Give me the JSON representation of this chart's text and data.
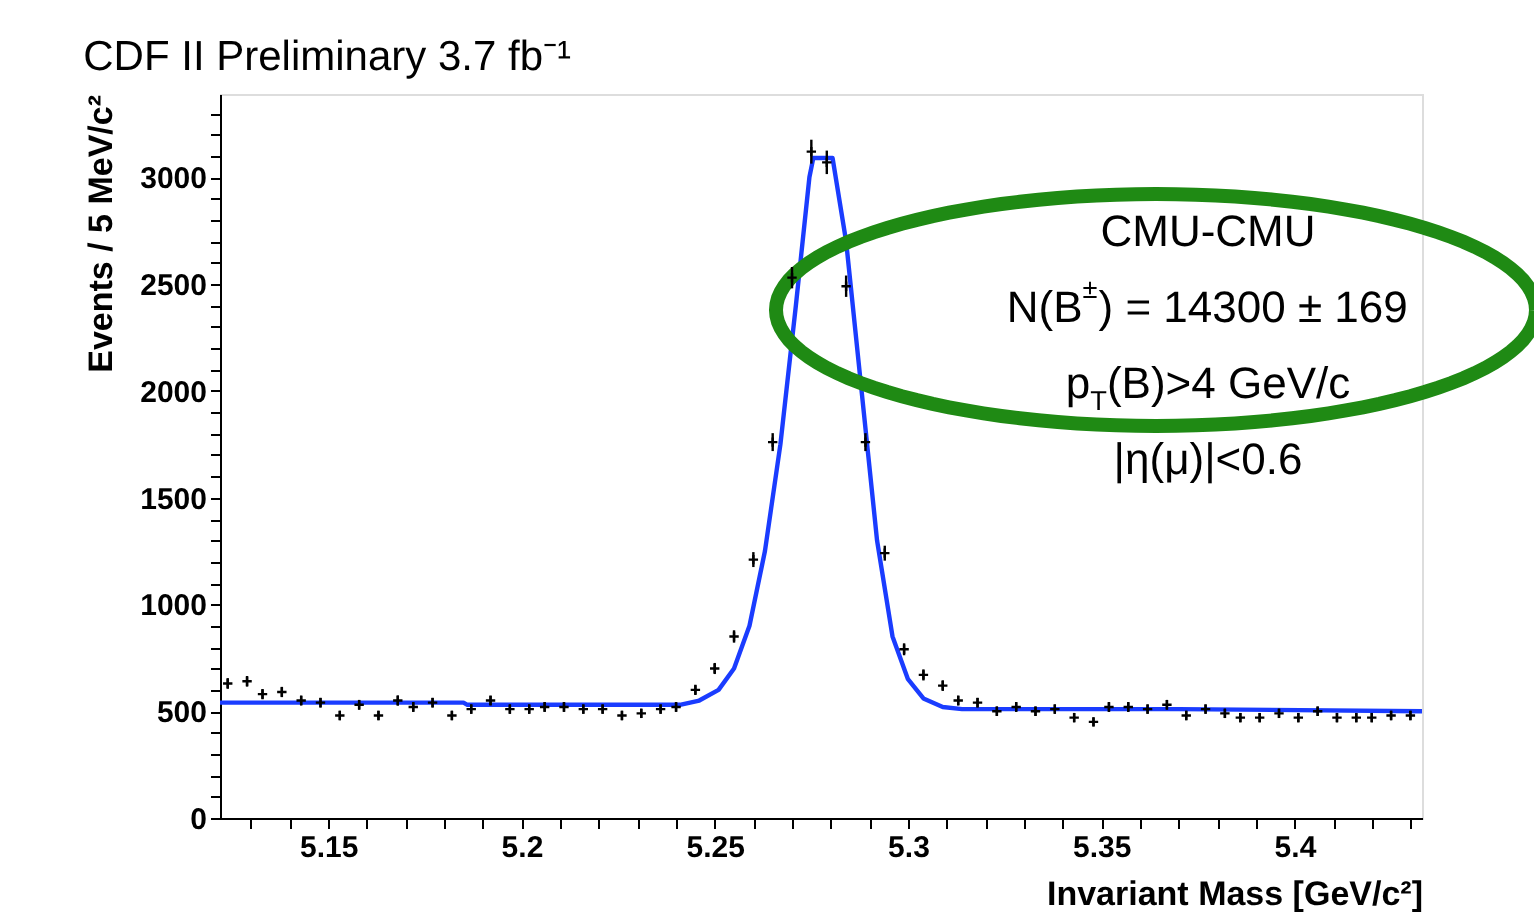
{
  "chart_data": {
    "type": "scatter",
    "title": "CDF II Preliminary 3.7 fb⁻¹",
    "xlabel": "Invariant Mass [GeV/c²]",
    "ylabel": "Events / 5 MeV/c²",
    "xlim": [
      5.122,
      5.433
    ],
    "ylim": [
      0,
      3390
    ],
    "xticks": [
      {
        "value": 5.13,
        "label": null
      },
      {
        "value": 5.14,
        "label": null
      },
      5.15,
      {
        "value": 5.16,
        "label": null
      },
      {
        "value": 5.17,
        "label": null
      },
      {
        "value": 5.18,
        "label": null
      },
      {
        "value": 5.19,
        "label": null
      },
      5.2,
      {
        "value": 5.21,
        "label": null
      },
      {
        "value": 5.22,
        "label": null
      },
      {
        "value": 5.23,
        "label": null
      },
      {
        "value": 5.24,
        "label": null
      },
      5.25,
      {
        "value": 5.26,
        "label": null
      },
      {
        "value": 5.27,
        "label": null
      },
      {
        "value": 5.28,
        "label": null
      },
      {
        "value": 5.29,
        "label": null
      },
      5.3,
      {
        "value": 5.31,
        "label": null
      },
      {
        "value": 5.32,
        "label": null
      },
      {
        "value": 5.33,
        "label": null
      },
      {
        "value": 5.34,
        "label": null
      },
      5.35,
      {
        "value": 5.36,
        "label": null
      },
      {
        "value": 5.37,
        "label": null
      },
      {
        "value": 5.38,
        "label": null
      },
      {
        "value": 5.39,
        "label": null
      },
      5.4,
      {
        "value": 5.41,
        "label": null
      },
      {
        "value": 5.42,
        "label": null
      },
      {
        "value": 5.43,
        "label": null
      }
    ],
    "yticks": [
      0,
      {
        "value": 100,
        "label": null
      },
      {
        "value": 200,
        "label": null
      },
      {
        "value": 300,
        "label": null
      },
      {
        "value": 400,
        "label": null
      },
      500,
      {
        "value": 600,
        "label": null
      },
      {
        "value": 700,
        "label": null
      },
      {
        "value": 800,
        "label": null
      },
      {
        "value": 900,
        "label": null
      },
      1000,
      {
        "value": 1100,
        "label": null
      },
      {
        "value": 1200,
        "label": null
      },
      {
        "value": 1300,
        "label": null
      },
      {
        "value": 1400,
        "label": null
      },
      1500,
      {
        "value": 1600,
        "label": null
      },
      {
        "value": 1700,
        "label": null
      },
      {
        "value": 1800,
        "label": null
      },
      {
        "value": 1900,
        "label": null
      },
      2000,
      {
        "value": 2100,
        "label": null
      },
      {
        "value": 2200,
        "label": null
      },
      {
        "value": 2300,
        "label": null
      },
      {
        "value": 2400,
        "label": null
      },
      2500,
      {
        "value": 2600,
        "label": null
      },
      {
        "value": 2700,
        "label": null
      },
      {
        "value": 2800,
        "label": null
      },
      {
        "value": 2900,
        "label": null
      },
      3000,
      {
        "value": 3100,
        "label": null
      },
      {
        "value": 3200,
        "label": null
      },
      {
        "value": 3300,
        "label": null
      }
    ],
    "grid": false,
    "marker": "cross",
    "series": [
      {
        "color": "#000000",
        "x": [
          5.124,
          5.129,
          5.133,
          5.138,
          5.143,
          5.148,
          5.153,
          5.158,
          5.163,
          5.168,
          5.172,
          5.177,
          5.182,
          5.187,
          5.192,
          5.197,
          5.202,
          5.206,
          5.211,
          5.216,
          5.221,
          5.226,
          5.231,
          5.236,
          5.24,
          5.245,
          5.25,
          5.255,
          5.26,
          5.265,
          5.27,
          5.275,
          5.279,
          5.284,
          5.289,
          5.294,
          5.299,
          5.304,
          5.309,
          5.313,
          5.318,
          5.323,
          5.328,
          5.333,
          5.338,
          5.343,
          5.348,
          5.352,
          5.357,
          5.362,
          5.367,
          5.372,
          5.377,
          5.382,
          5.386,
          5.391,
          5.396,
          5.401,
          5.406,
          5.411,
          5.416,
          5.42,
          5.425,
          5.43
        ],
        "values": [
          630,
          640,
          580,
          590,
          550,
          540,
          480,
          530,
          480,
          550,
          520,
          540,
          480,
          510,
          550,
          510,
          510,
          520,
          520,
          510,
          510,
          480,
          490,
          510,
          520,
          600,
          700,
          850,
          1210,
          1760,
          2530,
          3120,
          3070,
          2490,
          1760,
          1240,
          790,
          670,
          620,
          550,
          540,
          500,
          520,
          500,
          510,
          470,
          450,
          520,
          520,
          510,
          530,
          480,
          510,
          490,
          470,
          470,
          490,
          470,
          500,
          470,
          470,
          470,
          480,
          480
        ],
        "errors": [
          25,
          25,
          24,
          24,
          23,
          23,
          22,
          23,
          22,
          24,
          23,
          23,
          22,
          22,
          23,
          22,
          22,
          23,
          23,
          22,
          22,
          22,
          22,
          22,
          23,
          24,
          26,
          29,
          35,
          42,
          50,
          56,
          55,
          50,
          42,
          35,
          28,
          26,
          25,
          23,
          23,
          22,
          23,
          22,
          22,
          22,
          21,
          23,
          23,
          22,
          23,
          22,
          22,
          22,
          22,
          22,
          22,
          22,
          22,
          22,
          22,
          22,
          22,
          22
        ]
      },
      {
        "type": "line",
        "color": "#1a3cff",
        "line_style": "solid",
        "marker": "none",
        "x": [
          5.122,
          5.185,
          5.186,
          5.241,
          5.246,
          5.251,
          5.255,
          5.259,
          5.263,
          5.267,
          5.271,
          5.2745,
          5.2755,
          5.2805,
          5.284,
          5.288,
          5.292,
          5.296,
          5.3,
          5.304,
          5.309,
          5.314,
          5.37,
          5.433
        ],
        "values": [
          540,
          540,
          530,
          530,
          550,
          600,
          700,
          900,
          1250,
          1750,
          2400,
          3000,
          3090,
          3090,
          2700,
          2000,
          1300,
          850,
          650,
          560,
          520,
          510,
          510,
          500
        ]
      }
    ],
    "annotations": [
      "CMU-CMU",
      "N(B$^{±}$) = 14300 ± 169",
      "p$_{T}$(B)>4 GeV/c",
      "|η(μ)|<0.6"
    ]
  }
}
